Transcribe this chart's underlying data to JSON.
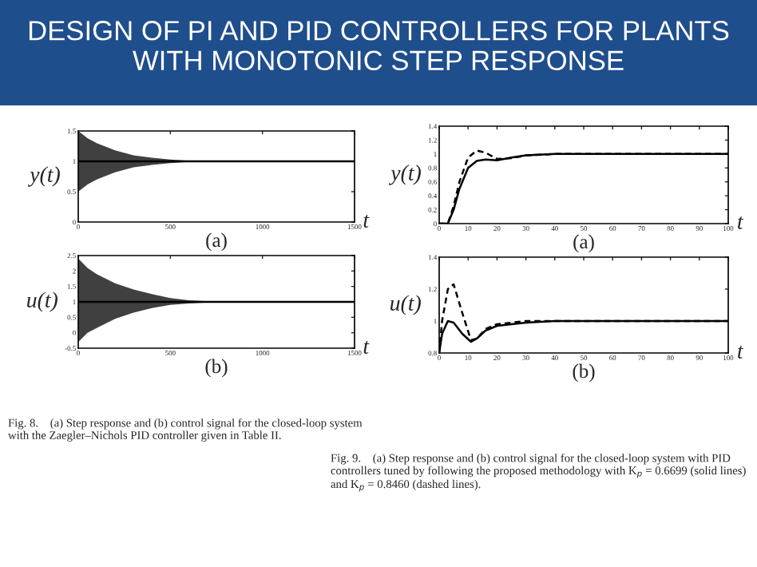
{
  "chart_data": [
    {
      "type": "line",
      "title": "DESIGN OF PI AND PID CONTROLLERS FOR PLANTS WITH MONOTONIC STEP RESPONSE",
      "xlabel": "(a)",
      "ylabel": "y(t)",
      "annotations": [
        "t"
      ],
      "x": [
        0,
        50,
        100,
        150,
        200,
        300,
        400,
        500,
        600,
        700,
        800,
        1500
      ],
      "series": [
        {
          "color": "#000000",
          "values": [
            1,
            1,
            1,
            1,
            1,
            1,
            1,
            1,
            1,
            1,
            1,
            1
          ],
          "upper": [
            1.5,
            1.38,
            1.3,
            1.24,
            1.18,
            1.1,
            1.06,
            1.03,
            1.01,
            1.0,
            1.0,
            1.0
          ],
          "lower": [
            0.5,
            0.62,
            0.7,
            0.76,
            0.82,
            0.9,
            0.94,
            0.97,
            0.99,
            1.0,
            1.0,
            1.0
          ]
        }
      ],
      "xlim": [
        0,
        1500
      ],
      "xticks": [
        0,
        500,
        1000,
        1500
      ],
      "ylim": [
        0,
        1.5
      ],
      "yticks": [
        0,
        0.5,
        1,
        1.5
      ]
    },
    {
      "type": "line",
      "xlabel": "(b)",
      "ylabel": "u(t)",
      "annotations": [
        "t",
        "Fig. 8.    (a) Step response and (b) control signal for the closed-loop system with the Zaegler–Nichols PID controller given in Table II."
      ],
      "x": [
        0,
        50,
        100,
        150,
        200,
        300,
        400,
        500,
        600,
        700,
        800,
        1500
      ],
      "series": [
        {
          "color": "#000000",
          "values": [
            1,
            1,
            1,
            1,
            1,
            1,
            1,
            1,
            1,
            1,
            1,
            1
          ],
          "upper": [
            2.4,
            2.1,
            1.9,
            1.75,
            1.6,
            1.4,
            1.25,
            1.12,
            1.05,
            1.02,
            1.0,
            1.0
          ],
          "lower": [
            -0.3,
            0,
            0.15,
            0.3,
            0.45,
            0.65,
            0.8,
            0.9,
            0.95,
            0.98,
            1.0,
            1.0
          ]
        }
      ],
      "xlim": [
        0,
        1500
      ],
      "xticks": [
        0,
        500,
        1000,
        1500
      ],
      "ylim": [
        -0.5,
        2.5
      ],
      "yticks": [
        -0.5,
        0,
        0.5,
        1,
        1.5,
        2,
        2.5
      ]
    },
    {
      "type": "line",
      "xlabel": "(a)",
      "ylabel": "y(t)",
      "annotations": [
        "t"
      ],
      "x": [
        0,
        3,
        5,
        7,
        10,
        13,
        16,
        20,
        25,
        30,
        40,
        100
      ],
      "series": [
        {
          "color": "#000000",
          "line_style": "solid",
          "values": [
            0,
            0,
            0.2,
            0.5,
            0.8,
            0.9,
            0.92,
            0.91,
            0.95,
            0.98,
            1,
            1
          ]
        },
        {
          "color": "#000000",
          "line_style": "dashed",
          "values": [
            0,
            0,
            0.25,
            0.6,
            0.95,
            1.05,
            1.02,
            0.93,
            0.94,
            0.98,
            1,
            1
          ]
        }
      ],
      "xlim": [
        0,
        100
      ],
      "xticks": [
        0,
        10,
        20,
        30,
        40,
        50,
        60,
        70,
        80,
        90,
        100
      ],
      "ylim": [
        0,
        1.4
      ],
      "yticks": [
        0,
        0.2,
        0.4,
        0.6,
        0.8,
        1,
        1.2,
        1.4
      ]
    },
    {
      "type": "line",
      "xlabel": "(b)",
      "ylabel": "u(t)",
      "annotations": [
        "t",
        "Fig. 9.    (a) Step response and (b) control signal for the closed-loop system with PID controllers tuned by following the proposed methodology with K$_{p}$ = 0.6699 (solid lines) and K$_{p}$ = 0.8460 (dashed lines)."
      ],
      "x": [
        0,
        1,
        3,
        5,
        8,
        11,
        13,
        16,
        20,
        25,
        30,
        40,
        100
      ],
      "series": [
        {
          "color": "#000000",
          "line_style": "solid",
          "values": [
            0.8,
            0.92,
            1.0,
            0.99,
            0.92,
            0.87,
            0.89,
            0.94,
            0.97,
            0.98,
            0.99,
            1,
            1
          ]
        },
        {
          "color": "#000000",
          "line_style": "dashed",
          "values": [
            0.8,
            1.0,
            1.2,
            1.23,
            1.05,
            0.88,
            0.89,
            0.95,
            0.98,
            0.99,
            1.0,
            1,
            1
          ]
        }
      ],
      "xlim": [
        0,
        100
      ],
      "xticks": [
        0,
        10,
        20,
        30,
        40,
        50,
        60,
        70,
        80,
        90,
        100
      ],
      "ylim": [
        0.8,
        1.4
      ],
      "yticks": [
        0.8,
        1,
        1.2,
        1.4
      ]
    }
  ]
}
